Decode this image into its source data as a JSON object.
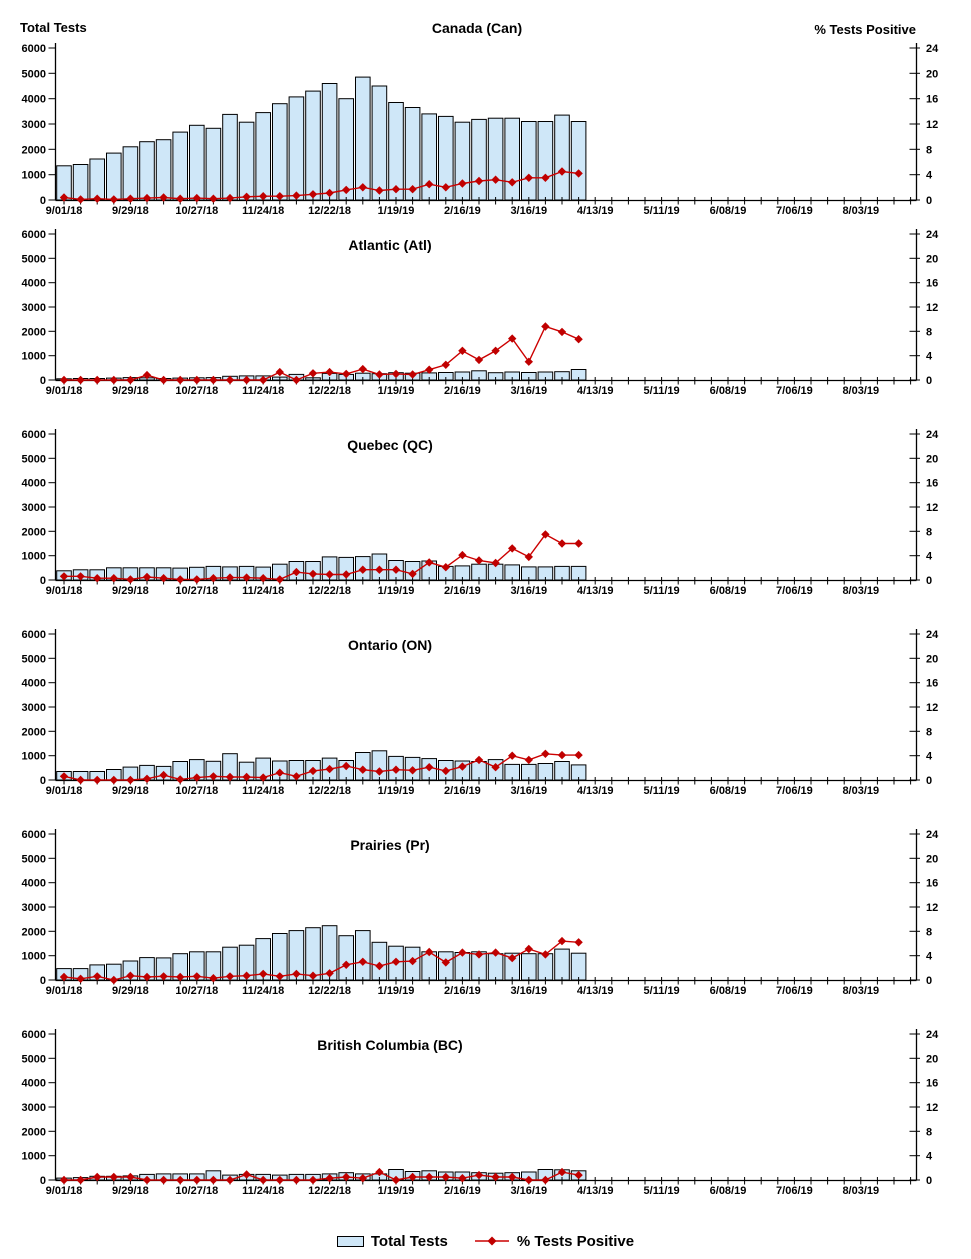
{
  "axes": {
    "left_title": "Total Tests",
    "right_title": "% Tests Positive",
    "left_ticks": [
      "6000",
      "5000",
      "4000",
      "3000",
      "2000",
      "1000",
      "0"
    ],
    "right_ticks": [
      "24",
      "20",
      "16",
      "12",
      "8",
      "4",
      "0"
    ],
    "x_tick_labels": [
      "9/01/18",
      "9/29/18",
      "10/27/18",
      "11/24/18",
      "12/22/18",
      "1/19/19",
      "2/16/19",
      "3/16/19",
      "4/13/19",
      "5/11/19",
      "6/08/19",
      "7/06/19",
      "8/03/19"
    ],
    "weeks_shown": 52,
    "data_weeks": 32
  },
  "legend": {
    "total_tests": "Total Tests",
    "pct_positive": "% Tests Positive"
  },
  "colors": {
    "bar_fill": "#CFE7F8",
    "bar_border": "#000000",
    "line": "#CC0000",
    "marker": "#C00000",
    "text": "#000000"
  },
  "chart_data": [
    {
      "id": "canada",
      "type": "bar+line",
      "title": "Canada (Can)",
      "x_weekly_start": "9/01/18",
      "x_weekly_end": "4/06/19",
      "left_axis": {
        "label": "Total Tests",
        "min": 0,
        "max": 6000,
        "step": 1000
      },
      "right_axis": {
        "label": "% Tests Positive",
        "min": 0,
        "max": 24,
        "step": 4
      },
      "series": [
        {
          "name": "Total Tests",
          "type": "bar",
          "axis": "left",
          "values": [
            1350,
            1400,
            1620,
            1850,
            2100,
            2300,
            2380,
            2680,
            2950,
            2830,
            3380,
            3070,
            3450,
            3800,
            4070,
            4300,
            4600,
            4000,
            4850,
            4500,
            3850,
            3650,
            3400,
            3300,
            3070,
            3180,
            3230,
            3230,
            3100,
            3100,
            3350,
            3100
          ]
        },
        {
          "name": "% Tests Positive",
          "type": "line",
          "axis": "right",
          "values": [
            0.4,
            0.1,
            0.2,
            0.1,
            0.2,
            0.3,
            0.4,
            0.2,
            0.3,
            0.2,
            0.3,
            0.5,
            0.6,
            0.6,
            0.7,
            0.9,
            1.1,
            1.6,
            2.0,
            1.5,
            1.7,
            1.7,
            2.5,
            2.0,
            2.6,
            3.0,
            3.2,
            2.8,
            3.5,
            3.5,
            4.5,
            4.2
          ]
        }
      ]
    },
    {
      "id": "atlantic",
      "type": "bar+line",
      "title": "Atlantic (Atl)",
      "x_weekly_start": "9/01/18",
      "x_weekly_end": "4/06/19",
      "left_axis": {
        "label": "Total Tests",
        "min": 0,
        "max": 6000,
        "step": 1000
      },
      "right_axis": {
        "label": "% Tests Positive",
        "min": 0,
        "max": 24,
        "step": 4
      },
      "series": [
        {
          "name": "Total Tests",
          "type": "bar",
          "axis": "left",
          "values": [
            50,
            60,
            60,
            80,
            100,
            90,
            60,
            80,
            90,
            100,
            150,
            170,
            170,
            120,
            230,
            90,
            270,
            230,
            280,
            260,
            300,
            280,
            290,
            310,
            330,
            380,
            300,
            330,
            310,
            330,
            340,
            430
          ]
        },
        {
          "name": "% Tests Positive",
          "type": "line",
          "axis": "right",
          "values": [
            0,
            0,
            0,
            0,
            0,
            0.8,
            0,
            0,
            0,
            0,
            0,
            0,
            0,
            1.3,
            0,
            1.1,
            1.3,
            1.0,
            1.8,
            0.9,
            1.0,
            0.9,
            1.7,
            2.5,
            4.8,
            3.3,
            4.8,
            6.8,
            3.0,
            8.8,
            7.9,
            6.7
          ]
        }
      ]
    },
    {
      "id": "quebec",
      "type": "bar+line",
      "title": "Quebec (QC)",
      "x_weekly_start": "9/01/18",
      "x_weekly_end": "4/06/19",
      "left_axis": {
        "label": "Total Tests",
        "min": 0,
        "max": 6000,
        "step": 1000
      },
      "right_axis": {
        "label": "% Tests Positive",
        "min": 0,
        "max": 24,
        "step": 4
      },
      "series": [
        {
          "name": "Total Tests",
          "type": "bar",
          "axis": "left",
          "values": [
            380,
            420,
            420,
            500,
            500,
            500,
            500,
            490,
            520,
            560,
            540,
            560,
            530,
            650,
            760,
            760,
            950,
            930,
            960,
            1070,
            800,
            760,
            780,
            560,
            580,
            650,
            650,
            620,
            540,
            540,
            560,
            560
          ]
        },
        {
          "name": "% Tests Positive",
          "type": "line",
          "axis": "right",
          "values": [
            0.6,
            0.6,
            0.3,
            0.3,
            0.1,
            0.5,
            0.3,
            0.1,
            0.1,
            0.3,
            0.4,
            0.4,
            0.3,
            0.1,
            1.3,
            1.0,
            0.9,
            0.9,
            1.7,
            1.7,
            1.7,
            1.0,
            2.9,
            2.1,
            4.1,
            3.2,
            2.8,
            5.2,
            3.8,
            7.5,
            6.0,
            6.0
          ]
        }
      ]
    },
    {
      "id": "ontario",
      "type": "bar+line",
      "title": "Ontario (ON)",
      "x_weekly_start": "9/01/18",
      "x_weekly_end": "4/06/19",
      "left_axis": {
        "label": "Total Tests",
        "min": 0,
        "max": 6000,
        "step": 1000
      },
      "right_axis": {
        "label": "% Tests Positive",
        "min": 0,
        "max": 24,
        "step": 4
      },
      "series": [
        {
          "name": "Total Tests",
          "type": "bar",
          "axis": "left",
          "values": [
            350,
            350,
            350,
            430,
            530,
            600,
            560,
            760,
            840,
            770,
            1080,
            730,
            900,
            780,
            800,
            800,
            900,
            800,
            1130,
            1200,
            970,
            930,
            880,
            800,
            780,
            760,
            840,
            640,
            640,
            680,
            760,
            620
          ]
        },
        {
          "name": "% Tests Positive",
          "type": "line",
          "axis": "right",
          "values": [
            0.6,
            0,
            0,
            0,
            0,
            0.2,
            0.8,
            0.1,
            0.4,
            0.6,
            0.5,
            0.5,
            0.4,
            1.2,
            0.6,
            1.5,
            1.8,
            2.3,
            1.7,
            1.4,
            1.7,
            1.6,
            2.1,
            1.5,
            2.2,
            3.3,
            2.1,
            4.0,
            3.3,
            4.3,
            4.1,
            4.1
          ]
        }
      ]
    },
    {
      "id": "prairies",
      "type": "bar+line",
      "title": "Prairies (Pr)",
      "x_weekly_start": "9/01/18",
      "x_weekly_end": "4/06/19",
      "left_axis": {
        "label": "Total Tests",
        "min": 0,
        "max": 6000,
        "step": 1000
      },
      "right_axis": {
        "label": "% Tests Positive",
        "min": 0,
        "max": 24,
        "step": 4
      },
      "series": [
        {
          "name": "Total Tests",
          "type": "bar",
          "axis": "left",
          "values": [
            470,
            470,
            620,
            650,
            780,
            920,
            910,
            1080,
            1160,
            1160,
            1350,
            1430,
            1700,
            1910,
            2030,
            2150,
            2230,
            1820,
            2030,
            1550,
            1390,
            1350,
            1160,
            1160,
            1130,
            1160,
            1080,
            1100,
            1080,
            1080,
            1270,
            1100
          ]
        },
        {
          "name": "% Tests Positive",
          "type": "line",
          "axis": "right",
          "values": [
            0.5,
            0.2,
            0.6,
            0,
            0.7,
            0.5,
            0.6,
            0.5,
            0.6,
            0.3,
            0.6,
            0.7,
            1.0,
            0.6,
            1.0,
            0.7,
            1.1,
            2.5,
            3.0,
            2.3,
            3.0,
            3.1,
            4.6,
            2.9,
            4.5,
            4.2,
            4.5,
            3.6,
            5.1,
            4.2,
            6.4,
            6.2
          ]
        }
      ]
    },
    {
      "id": "british-columbia",
      "type": "bar+line",
      "title": "British Columbia (BC)",
      "x_weekly_start": "9/01/18",
      "x_weekly_end": "4/06/19",
      "left_axis": {
        "label": "Total Tests",
        "min": 0,
        "max": 6000,
        "step": 1000
      },
      "right_axis": {
        "label": "% Tests Positive",
        "min": 0,
        "max": 24,
        "step": 4
      },
      "series": [
        {
          "name": "Total Tests",
          "type": "bar",
          "axis": "left",
          "values": [
            80,
            100,
            150,
            150,
            170,
            230,
            250,
            250,
            250,
            380,
            200,
            230,
            230,
            200,
            230,
            230,
            250,
            300,
            250,
            250,
            430,
            350,
            380,
            330,
            330,
            300,
            280,
            300,
            330,
            430,
            420,
            380
          ]
        },
        {
          "name": "% Tests Positive",
          "type": "line",
          "axis": "right",
          "values": [
            0,
            0,
            0.5,
            0.5,
            0.5,
            0,
            0,
            0,
            0,
            0,
            0,
            0.9,
            0,
            0,
            0,
            0,
            0.3,
            0.5,
            0.3,
            1.3,
            0,
            0.5,
            0.5,
            0.5,
            0.3,
            0.8,
            0.5,
            0.5,
            0,
            0,
            1.3,
            0.8
          ]
        }
      ]
    }
  ]
}
